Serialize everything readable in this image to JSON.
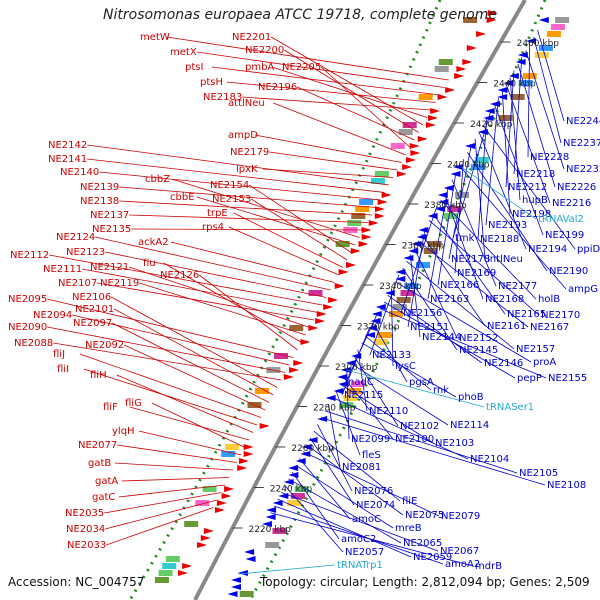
{
  "title": "Nitrosomonas europaea ATCC 19718, complete genome",
  "footer": {
    "accession": "Accession: NC_004757",
    "topology": "Topology: circular; Length: 2,812,094 bp; Genes: 2,509"
  },
  "colors": {
    "left_labels": "#cc0000",
    "right_labels": "#0000cc",
    "rna_labels": "#22aacc",
    "backbone": "#888888",
    "dots": "#228822",
    "forward_features": "#ee0000",
    "reverse_features": "#0000ee"
  },
  "ticks": [
    "2460 kbp",
    "2440 kbp",
    "2420 kbp",
    "2400 kbp",
    "2380 kbp",
    "2360 kbp",
    "2340 kbp",
    "2320 kbp",
    "2300 kbp",
    "2280 kbp",
    "2260 kbp",
    "2240 kbp",
    "2220 kbp"
  ],
  "left_labels": [
    "metW",
    "metX",
    "ptsI",
    "ptsH",
    "NE2183",
    "pmbA",
    "NE2201",
    "NE2200",
    "NE2196",
    "NE2205",
    "attlNeu",
    "ampD",
    "NE2179",
    "lpxK",
    "NE2142",
    "NE2141",
    "NE2140",
    "NE2139",
    "NE2138",
    "NE2137",
    "NE2135",
    "cbbZ",
    "cbbE",
    "NE2154",
    "NE2153",
    "trpE",
    "rps4",
    "ackA2",
    "NE2124",
    "NE2123",
    "NE2112",
    "NE2111",
    "NE2107",
    "NE2121",
    "NE2119",
    "fiu",
    "NE2126",
    "NE2095",
    "NE2094",
    "NE2090",
    "NE2088",
    "NE2106",
    "NE2101",
    "NE2097",
    "NE2092",
    "fliJ",
    "fliI",
    "fliH",
    "fliF",
    "fliG",
    "ylqH",
    "NE2077",
    "gatB",
    "gatA",
    "gatC",
    "NE2035",
    "NE2034",
    "NE2033"
  ],
  "right_labels": [
    "NE2244",
    "NE2237",
    "NE2228",
    "NE2232",
    "NE2218",
    "NE2226",
    "NE2212",
    "hupB",
    "NE2216",
    "NE2198",
    "NE2193",
    "NE2199",
    "tmk",
    "NE2188",
    "ppiD",
    "NE2194",
    "intlNeu",
    "NE2178",
    "NE2190",
    "NE2169",
    "ampG",
    "NE2166",
    "NE2177",
    "NE2163",
    "NE2168",
    "holB",
    "NE2156",
    "NE2165",
    "NE2170",
    "NE2151",
    "NE2161",
    "NE2167",
    "NE2152",
    "NE2144",
    "NE2157",
    "NE2145",
    "NE2133",
    "proA",
    "lysC",
    "NE2146",
    "pepP",
    "NE2155",
    "nadC",
    "pgsA",
    "NE2115",
    "rnk",
    "phoB",
    "NE2110",
    "NE2102",
    "NE2114",
    "NE2099",
    "NE2100",
    "NE2103",
    "fleS",
    "NE2104",
    "NE2081",
    "NE2105",
    "NE2108",
    "NE2076",
    "fliE",
    "NE2074",
    "NE2075",
    "NE2079",
    "amoC",
    "mreB",
    "amoC2",
    "NE2065",
    "NE2057",
    "NE2067",
    "NE2059",
    "amoA2",
    "mdrB"
  ],
  "rna_labels": [
    "tRNAVal2",
    "tRNASer1",
    "tRNATrp1"
  ]
}
